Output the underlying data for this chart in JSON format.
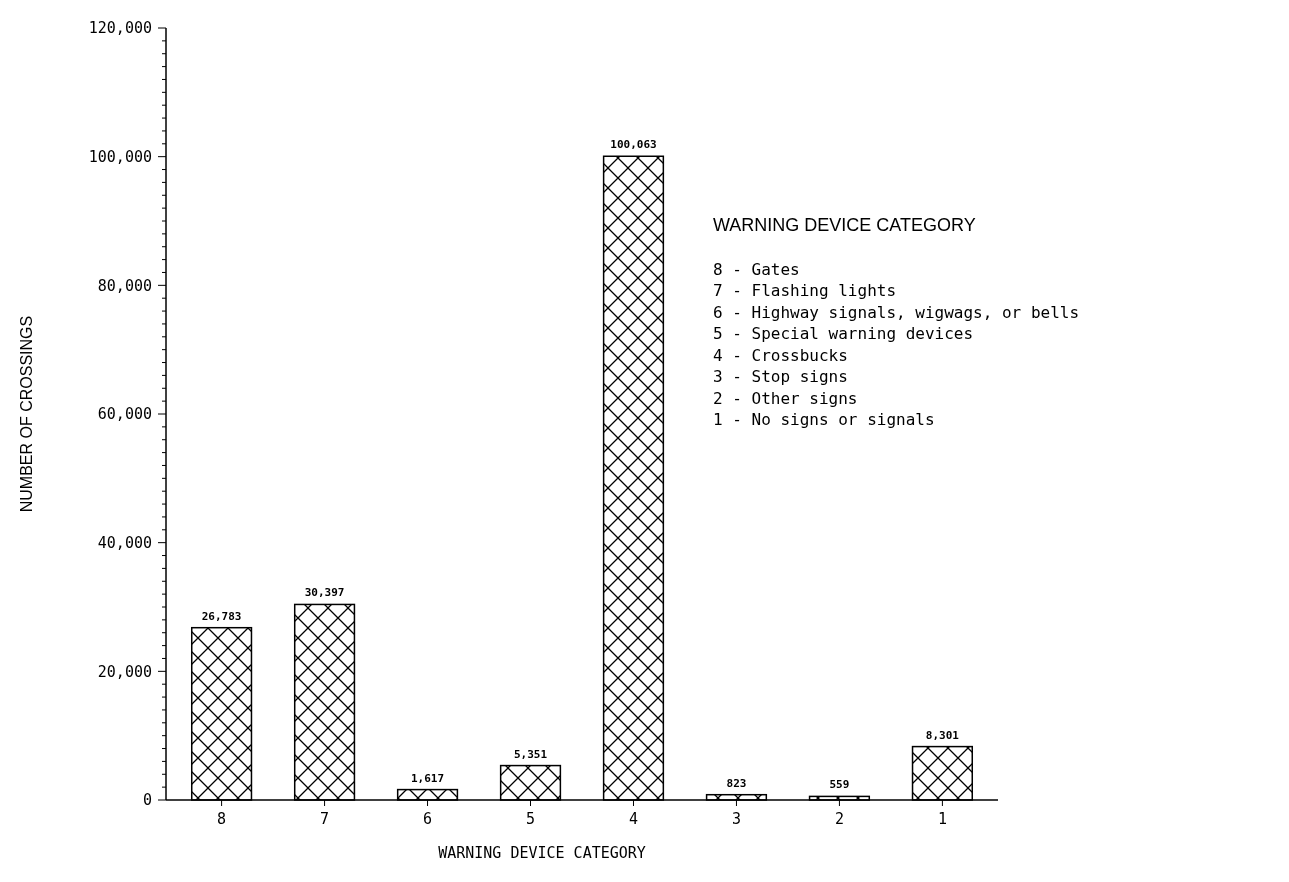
{
  "chart_data": {
    "type": "bar",
    "categories": [
      "8",
      "7",
      "6",
      "5",
      "4",
      "3",
      "2",
      "1"
    ],
    "values": [
      26783,
      30397,
      1617,
      5351,
      100063,
      823,
      559,
      8301
    ],
    "color": "#000000",
    "value_labels": [
      "26,783",
      "30,397",
      "1,617",
      "5,351",
      "100,063",
      "823",
      "559",
      "8,301"
    ],
    "xlabel": "WARNING DEVICE CATEGORY",
    "ylabel": "NUMBER OF CROSSINGS",
    "ylim": [
      0,
      120000
    ],
    "yticks": [
      0,
      {
        "value": 2000,
        "label": null
      },
      {
        "value": 4000,
        "label": null
      },
      {
        "value": 6000,
        "label": null
      },
      {
        "value": 8000,
        "label": null
      },
      {
        "value": 10000,
        "label": null
      },
      {
        "value": 12000,
        "label": null
      },
      {
        "value": 14000,
        "label": null
      },
      {
        "value": 16000,
        "label": null
      },
      {
        "value": 18000,
        "label": null
      },
      {
        "value": 20000,
        "label": "20,000"
      },
      {
        "value": 22000,
        "label": null
      },
      {
        "value": 24000,
        "label": null
      },
      {
        "value": 26000,
        "label": null
      },
      {
        "value": 28000,
        "label": null
      },
      {
        "value": 30000,
        "label": null
      },
      {
        "value": 32000,
        "label": null
      },
      {
        "value": 34000,
        "label": null
      },
      {
        "value": 36000,
        "label": null
      },
      {
        "value": 38000,
        "label": null
      },
      {
        "value": 40000,
        "label": "40,000"
      },
      {
        "value": 42000,
        "label": null
      },
      {
        "value": 44000,
        "label": null
      },
      {
        "value": 46000,
        "label": null
      },
      {
        "value": 48000,
        "label": null
      },
      {
        "value": 50000,
        "label": null
      },
      {
        "value": 52000,
        "label": null
      },
      {
        "value": 54000,
        "label": null
      },
      {
        "value": 56000,
        "label": null
      },
      {
        "value": 58000,
        "label": null
      },
      {
        "value": 60000,
        "label": "60,000"
      },
      {
        "value": 62000,
        "label": null
      },
      {
        "value": 64000,
        "label": null
      },
      {
        "value": 66000,
        "label": null
      },
      {
        "value": 68000,
        "label": null
      },
      {
        "value": 70000,
        "label": null
      },
      {
        "value": 72000,
        "label": null
      },
      {
        "value": 74000,
        "label": null
      },
      {
        "value": 76000,
        "label": null
      },
      {
        "value": 78000,
        "label": null
      },
      {
        "value": 80000,
        "label": "80,000"
      },
      {
        "value": 82000,
        "label": null
      },
      {
        "value": 84000,
        "label": null
      },
      {
        "value": 86000,
        "label": null
      },
      {
        "value": 88000,
        "label": null
      },
      {
        "value": 90000,
        "label": null
      },
      {
        "value": 92000,
        "label": null
      },
      {
        "value": 94000,
        "label": null
      },
      {
        "value": 96000,
        "label": null
      },
      {
        "value": 98000,
        "label": null
      },
      {
        "value": 100000,
        "label": "100,000"
      },
      {
        "value": 102000,
        "label": null
      },
      {
        "value": 104000,
        "label": null
      },
      {
        "value": 106000,
        "label": null
      },
      {
        "value": 108000,
        "label": null
      },
      {
        "value": 110000,
        "label": null
      },
      {
        "value": 112000,
        "label": null
      },
      {
        "value": 114000,
        "label": null
      },
      {
        "value": 116000,
        "label": null
      },
      {
        "value": 118000,
        "label": null
      },
      {
        "value": 120000,
        "label": "120,000"
      }
    ],
    "grid": false,
    "annotations": [
      "WARNING DEVICE CATEGORY",
      "8 - Gates",
      "7 - Flashing lights",
      "6 - Highway signals, wigwags, or bells",
      "5 - Special warning devices",
      "4 - Crossbucks",
      "3 - Stop signs",
      "2 - Other signs",
      "1 - No signs or signals"
    ]
  }
}
